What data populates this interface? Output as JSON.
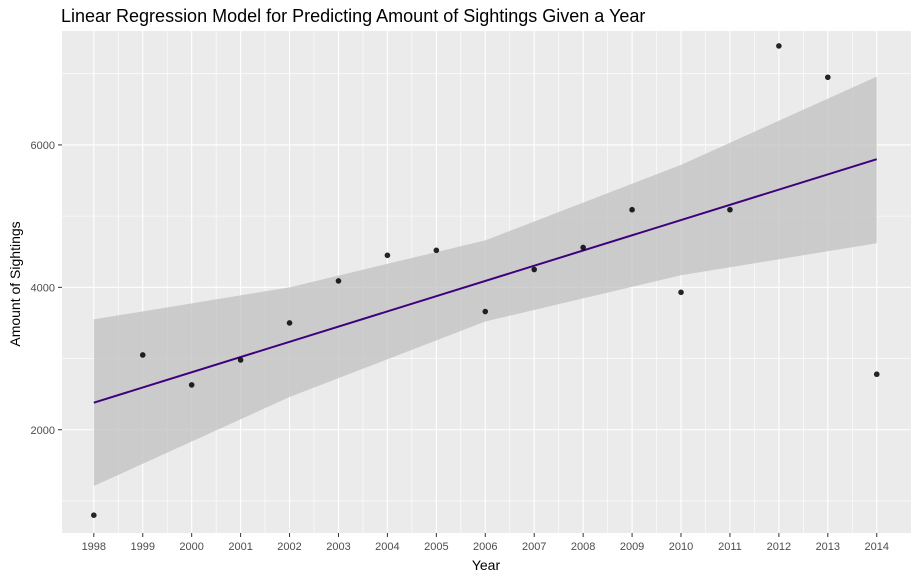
{
  "chart_data": {
    "type": "scatter",
    "title": "Linear Regression Model for Predicting Amount of Sightings Given a Year",
    "xlabel": "Year",
    "ylabel": "Amount of Sightings",
    "x_ticks": [
      "1998",
      "1999",
      "2000",
      "2001",
      "2002",
      "2003",
      "2004",
      "2005",
      "2006",
      "2007",
      "2008",
      "2009",
      "2010",
      "2011",
      "2012",
      "2013",
      "2014"
    ],
    "y_ticks": [
      "2000",
      "4000",
      "6000"
    ],
    "xlim": [
      1997.35,
      2014.7
    ],
    "ylim": [
      550,
      7600
    ],
    "grid": true,
    "points": [
      {
        "x": 1998,
        "y": 800
      },
      {
        "x": 1999,
        "y": 3050
      },
      {
        "x": 2000,
        "y": 2630
      },
      {
        "x": 2001,
        "y": 2980
      },
      {
        "x": 2002,
        "y": 3500
      },
      {
        "x": 2003,
        "y": 4090
      },
      {
        "x": 2004,
        "y": 4450
      },
      {
        "x": 2005,
        "y": 4520
      },
      {
        "x": 2006,
        "y": 3660
      },
      {
        "x": 2007,
        "y": 4250
      },
      {
        "x": 2008,
        "y": 4560
      },
      {
        "x": 2009,
        "y": 5090
      },
      {
        "x": 2010,
        "y": 3930
      },
      {
        "x": 2011,
        "y": 5090
      },
      {
        "x": 2012,
        "y": 7390
      },
      {
        "x": 2013,
        "y": 6950
      },
      {
        "x": 2014,
        "y": 2780
      }
    ],
    "fit_line": {
      "x": [
        1998,
        2014
      ],
      "y": [
        2380,
        5800
      ]
    },
    "confidence_band": {
      "x": [
        1998,
        2002,
        2006,
        2010,
        2014
      ],
      "lower": [
        1210,
        2460,
        3520,
        4170,
        4620
      ],
      "upper": [
        3550,
        4000,
        4660,
        5720,
        6960
      ]
    },
    "colors": {
      "panel": "#ebebeb",
      "grid_major": "#ffffff",
      "point": "#000000",
      "line": "#3f007d",
      "band": "#bebebe"
    }
  }
}
